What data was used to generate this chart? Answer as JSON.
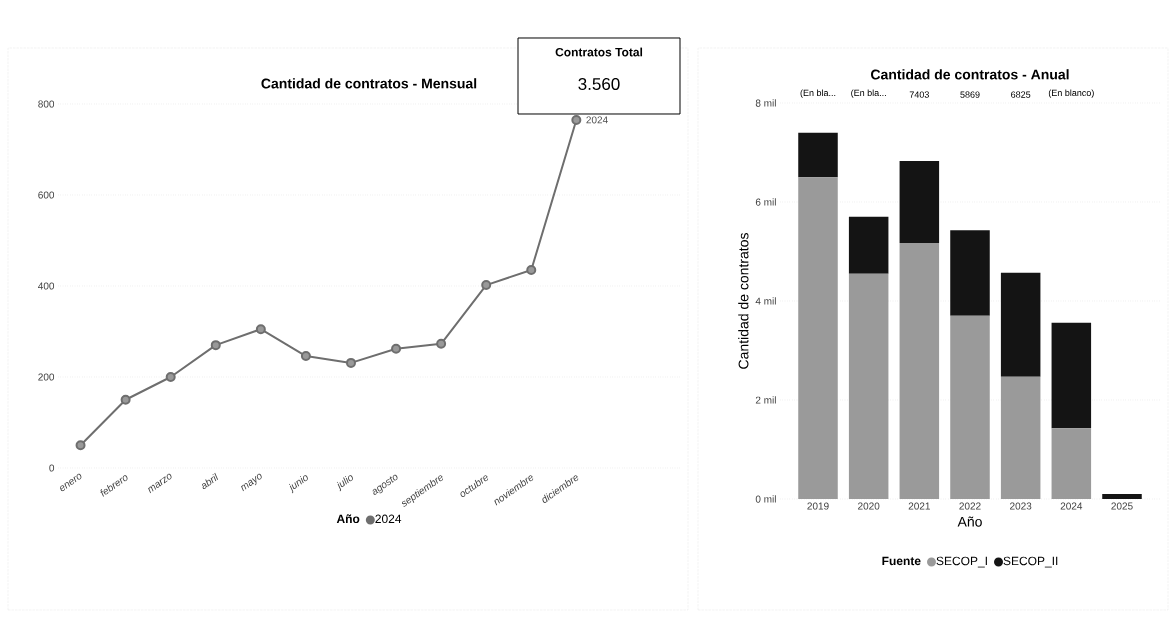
{
  "chart_data": [
    {
      "type": "line",
      "title": "Cantidad de contratos - Mensual",
      "categories": [
        "enero",
        "febrero",
        "marzo",
        "abril",
        "mayo",
        "junio",
        "julio",
        "agosto",
        "septiembre",
        "octubre",
        "noviembre",
        "diciembre"
      ],
      "series": [
        {
          "name": "2024",
          "color": "#6e6e6e",
          "values": [
            50,
            150,
            200,
            270,
            305,
            246,
            231,
            262,
            273,
            402,
            435,
            765
          ]
        }
      ],
      "legend_title": "Año",
      "legend": "bottom",
      "marker": "circle",
      "line_style": "solid",
      "grid": "y",
      "ylim": [
        0,
        800
      ],
      "yticks": [
        0,
        200,
        400,
        600,
        800
      ]
    },
    {
      "type": "other",
      "title": "Contratos Total",
      "annotations": [
        "3.560"
      ]
    },
    {
      "type": "bar",
      "title": "Cantidad de contratos - Anual",
      "xlabel": "Año",
      "ylabel": "Cantidad de contratos",
      "categories": [
        "2019",
        "2020",
        "2021",
        "2022",
        "2023",
        "2024",
        "2025"
      ],
      "stacked": true,
      "series": [
        {
          "name": "SECOP_I",
          "color": "#9a9a9a",
          "values": [
            6.5,
            4.55,
            5.17,
            3.7,
            2.47,
            1.43,
            0
          ]
        },
        {
          "name": "SECOP_II",
          "color": "#141414",
          "values": [
            0.9,
            1.15,
            1.66,
            1.73,
            2.1,
            2.13,
            0.1
          ]
        }
      ],
      "legend_title": "Fuente",
      "legend": "bottom",
      "grid": "y",
      "ylim": [
        0,
        8
      ],
      "yticks": [
        {
          "value": 0,
          "label": "0 mil"
        },
        {
          "value": 2,
          "label": "2 mil"
        },
        {
          "value": 4,
          "label": "4 mil"
        },
        {
          "value": 6,
          "label": "6 mil"
        },
        {
          "value": 8,
          "label": "8 mil"
        }
      ],
      "annotations": [
        "(En bla...",
        "(En bla...",
        "7403",
        "5869",
        "6825",
        "(En blanco)"
      ]
    }
  ]
}
